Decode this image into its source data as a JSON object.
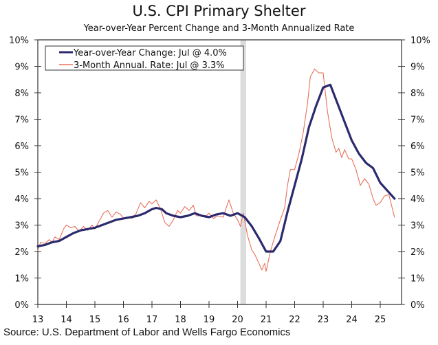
{
  "chart_data": {
    "type": "line",
    "title": "U.S. CPI Primary Shelter",
    "subtitle": "Year-over-Year Percent Change and 3-Month Annualized Rate",
    "source": "Source: U.S. Department of Labor and Wells Fargo Economics",
    "xlabel": "",
    "ylabel": "",
    "xlim": [
      13,
      25.75
    ],
    "ylim": [
      0,
      10
    ],
    "x_ticks": [
      "13",
      "14",
      "15",
      "16",
      "17",
      "18",
      "19",
      "20",
      "21",
      "22",
      "23",
      "24",
      "25"
    ],
    "y_ticks_left": [
      "0%",
      "1%",
      "2%",
      "3%",
      "4%",
      "5%",
      "6%",
      "7%",
      "8%",
      "9%",
      "10%"
    ],
    "y_ticks_right": [
      "0%",
      "1%",
      "2%",
      "3%",
      "4%",
      "5%",
      "6%",
      "7%",
      "8%",
      "9%",
      "10%"
    ],
    "grid": false,
    "legend_position": "top-left",
    "shaded_regions": [
      {
        "label": "recession",
        "x_start": 20.1,
        "x_end": 20.3,
        "color": "#dcdcdc"
      }
    ],
    "series": [
      {
        "name": "Year-over-Year Change: Jul @ 4.0%",
        "color": "#2b2a6e",
        "points": [
          [
            13.0,
            2.2
          ],
          [
            13.25,
            2.25
          ],
          [
            13.5,
            2.35
          ],
          [
            13.75,
            2.4
          ],
          [
            14.0,
            2.55
          ],
          [
            14.25,
            2.7
          ],
          [
            14.5,
            2.8
          ],
          [
            14.75,
            2.85
          ],
          [
            15.0,
            2.9
          ],
          [
            15.25,
            3.0
          ],
          [
            15.5,
            3.1
          ],
          [
            15.75,
            3.2
          ],
          [
            16.0,
            3.25
          ],
          [
            16.25,
            3.3
          ],
          [
            16.5,
            3.35
          ],
          [
            16.75,
            3.45
          ],
          [
            17.0,
            3.6
          ],
          [
            17.15,
            3.65
          ],
          [
            17.35,
            3.6
          ],
          [
            17.5,
            3.45
          ],
          [
            17.75,
            3.35
          ],
          [
            18.0,
            3.3
          ],
          [
            18.25,
            3.35
          ],
          [
            18.5,
            3.45
          ],
          [
            18.75,
            3.35
          ],
          [
            19.0,
            3.3
          ],
          [
            19.25,
            3.4
          ],
          [
            19.5,
            3.45
          ],
          [
            19.75,
            3.35
          ],
          [
            20.0,
            3.45
          ],
          [
            20.25,
            3.3
          ],
          [
            20.5,
            2.95
          ],
          [
            20.75,
            2.5
          ],
          [
            21.0,
            2.0
          ],
          [
            21.25,
            2.0
          ],
          [
            21.5,
            2.4
          ],
          [
            21.75,
            3.5
          ],
          [
            22.0,
            4.5
          ],
          [
            22.25,
            5.5
          ],
          [
            22.5,
            6.7
          ],
          [
            22.75,
            7.5
          ],
          [
            23.0,
            8.2
          ],
          [
            23.25,
            8.3
          ],
          [
            23.5,
            7.6
          ],
          [
            23.75,
            6.9
          ],
          [
            24.0,
            6.2
          ],
          [
            24.25,
            5.7
          ],
          [
            24.5,
            5.35
          ],
          [
            24.75,
            5.15
          ],
          [
            25.0,
            4.6
          ],
          [
            25.25,
            4.3
          ],
          [
            25.5,
            4.0
          ]
        ]
      },
      {
        "name": "3-Month Annual. Rate: Jul @ 3.3%",
        "color": "#e8705a",
        "points": [
          [
            13.0,
            2.05
          ],
          [
            13.1,
            2.35
          ],
          [
            13.25,
            2.3
          ],
          [
            13.4,
            2.45
          ],
          [
            13.5,
            2.35
          ],
          [
            13.6,
            2.55
          ],
          [
            13.75,
            2.45
          ],
          [
            13.9,
            2.85
          ],
          [
            14.0,
            3.0
          ],
          [
            14.15,
            2.9
          ],
          [
            14.3,
            2.95
          ],
          [
            14.45,
            2.75
          ],
          [
            14.6,
            2.95
          ],
          [
            14.75,
            2.8
          ],
          [
            14.9,
            3.0
          ],
          [
            15.0,
            2.85
          ],
          [
            15.15,
            3.15
          ],
          [
            15.3,
            3.45
          ],
          [
            15.45,
            3.55
          ],
          [
            15.6,
            3.3
          ],
          [
            15.75,
            3.5
          ],
          [
            15.9,
            3.4
          ],
          [
            16.0,
            3.25
          ],
          [
            16.15,
            3.3
          ],
          [
            16.3,
            3.25
          ],
          [
            16.45,
            3.45
          ],
          [
            16.6,
            3.85
          ],
          [
            16.75,
            3.65
          ],
          [
            16.9,
            3.9
          ],
          [
            17.0,
            3.8
          ],
          [
            17.15,
            3.95
          ],
          [
            17.3,
            3.6
          ],
          [
            17.45,
            3.1
          ],
          [
            17.6,
            2.95
          ],
          [
            17.75,
            3.2
          ],
          [
            17.9,
            3.55
          ],
          [
            18.0,
            3.45
          ],
          [
            18.15,
            3.7
          ],
          [
            18.3,
            3.55
          ],
          [
            18.45,
            3.75
          ],
          [
            18.55,
            3.35
          ],
          [
            18.7,
            3.35
          ],
          [
            18.85,
            3.3
          ],
          [
            19.0,
            3.45
          ],
          [
            19.15,
            3.25
          ],
          [
            19.3,
            3.35
          ],
          [
            19.5,
            3.3
          ],
          [
            19.6,
            3.65
          ],
          [
            19.7,
            3.95
          ],
          [
            19.85,
            3.45
          ],
          [
            20.0,
            3.2
          ],
          [
            20.1,
            2.95
          ],
          [
            20.2,
            3.45
          ],
          [
            20.35,
            2.6
          ],
          [
            20.5,
            2.05
          ],
          [
            20.6,
            1.9
          ],
          [
            20.75,
            1.55
          ],
          [
            20.85,
            1.3
          ],
          [
            20.95,
            1.55
          ],
          [
            21.0,
            1.25
          ],
          [
            21.15,
            2.0
          ],
          [
            21.3,
            2.55
          ],
          [
            21.5,
            3.2
          ],
          [
            21.65,
            3.65
          ],
          [
            21.75,
            4.5
          ],
          [
            21.85,
            5.1
          ],
          [
            22.0,
            5.1
          ],
          [
            22.15,
            5.7
          ],
          [
            22.3,
            6.5
          ],
          [
            22.45,
            7.6
          ],
          [
            22.55,
            8.6
          ],
          [
            22.7,
            8.9
          ],
          [
            22.85,
            8.75
          ],
          [
            23.0,
            8.75
          ],
          [
            23.15,
            7.3
          ],
          [
            23.3,
            6.3
          ],
          [
            23.45,
            5.75
          ],
          [
            23.55,
            5.9
          ],
          [
            23.65,
            5.55
          ],
          [
            23.75,
            5.85
          ],
          [
            23.9,
            5.5
          ],
          [
            24.0,
            5.5
          ],
          [
            24.15,
            5.1
          ],
          [
            24.3,
            4.5
          ],
          [
            24.45,
            4.75
          ],
          [
            24.6,
            4.55
          ],
          [
            24.75,
            4.0
          ],
          [
            24.85,
            3.75
          ],
          [
            25.0,
            3.85
          ],
          [
            25.15,
            4.1
          ],
          [
            25.3,
            4.15
          ],
          [
            25.5,
            3.3
          ]
        ]
      }
    ]
  }
}
